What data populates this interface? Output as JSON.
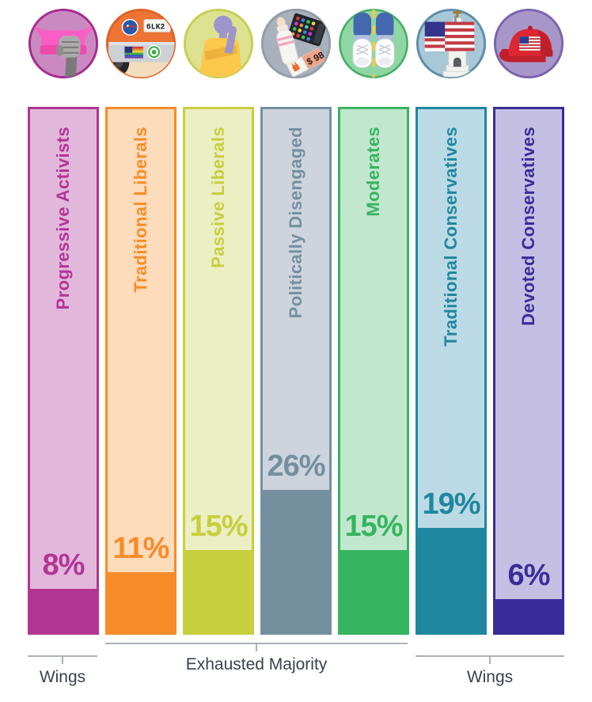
{
  "groups": [
    {
      "name": "Progressive Activists",
      "pct": 8,
      "pct_label": "8%",
      "accent": "#B23594",
      "fill": "#E2B7DC",
      "icon": "pussyhat-fist-icon"
    },
    {
      "name": "Traditional Liberals",
      "pct": 11,
      "pct_label": "11%",
      "accent": "#F88C28",
      "fill": "#FDDCBC",
      "icon": "car-bumper-stickers-icon"
    },
    {
      "name": "Passive Liberals",
      "pct": 15,
      "pct_label": "15%",
      "accent": "#C6CF3E",
      "fill": "#ECEEC4",
      "icon": "thinking-person-icon"
    },
    {
      "name": "Politically Disengaged",
      "pct": 26,
      "pct_label": "26%",
      "accent": "#74909F",
      "fill": "#CDD4DE",
      "icon": "baby-bottle-price-tag-icon"
    },
    {
      "name": "Moderates",
      "pct": 15,
      "pct_label": "15%",
      "accent": "#37B45F",
      "fill": "#C2E7CF",
      "icon": "sneakers-on-road-icon"
    },
    {
      "name": "Traditional Conservatives",
      "pct": 19,
      "pct_label": "19%",
      "accent": "#1F87A0",
      "fill": "#BCDAE5",
      "icon": "flag-church-icon"
    },
    {
      "name": "Devoted Conservatives",
      "pct": 6,
      "pct_label": "6%",
      "accent": "#3A2C98",
      "fill": "#C5C0E3",
      "icon": "red-cap-flag-icon"
    }
  ],
  "icon_details": {
    "license_plate_text": "6LK2",
    "price_tag_text": "$ 98"
  },
  "footer": {
    "brackets": [
      {
        "label": "Wings"
      },
      {
        "label": "Exhausted Majority"
      },
      {
        "label": "Wings"
      }
    ]
  },
  "colors": {
    "background": "#FFFFFF",
    "footer_text": "#3A424C",
    "bracket_line": "#ABB1B7"
  },
  "chart_data": {
    "type": "bar",
    "title": "",
    "categories": [
      "Progressive Activists",
      "Traditional Liberals",
      "Passive Liberals",
      "Politically Disengaged",
      "Moderates",
      "Traditional Conservatives",
      "Devoted Conservatives"
    ],
    "values": [
      8,
      11,
      15,
      26,
      15,
      19,
      6
    ],
    "unit": "%",
    "orientation": "vertical",
    "bar_colors": [
      "#B23594",
      "#F88C28",
      "#C6CF3E",
      "#74909F",
      "#37B45F",
      "#1F87A0",
      "#3A2C98"
    ],
    "value_labels": [
      "8%",
      "11%",
      "15%",
      "26%",
      "15%",
      "19%",
      "6%"
    ],
    "group_brackets": [
      {
        "label": "Wings",
        "covers": [
          "Progressive Activists"
        ]
      },
      {
        "label": "Exhausted Majority",
        "covers": [
          "Traditional Liberals",
          "Passive Liberals",
          "Politically Disengaged",
          "Moderates"
        ]
      },
      {
        "label": "Wings",
        "covers": [
          "Traditional Conservatives",
          "Devoted Conservatives"
        ]
      }
    ],
    "legend": "none",
    "grid": false
  }
}
